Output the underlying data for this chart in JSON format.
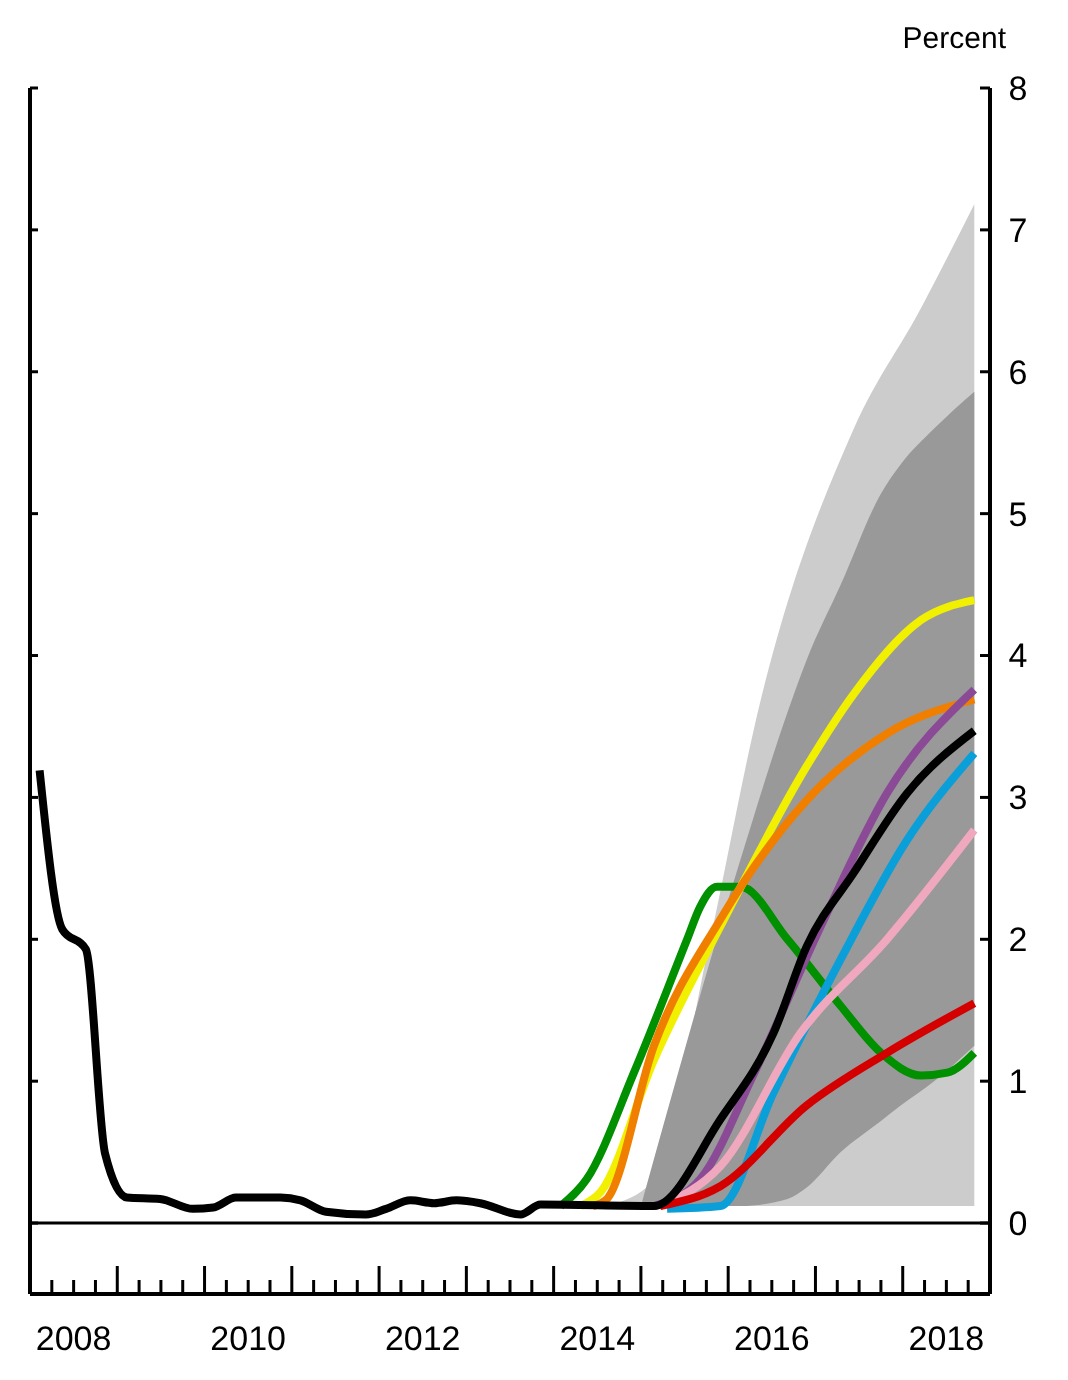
{
  "chart_data": {
    "type": "line",
    "ylabel": "Percent",
    "xlim": [
      2008,
      2019
    ],
    "ylim": [
      -0.5,
      8
    ],
    "yticks": [
      0,
      1,
      2,
      3,
      4,
      5,
      6,
      7,
      8
    ],
    "xticks": [
      {
        "value": 2008,
        "label": null
      },
      {
        "value": 2008.25,
        "label": null
      },
      {
        "value": 2008.5,
        "label": "2008"
      },
      {
        "value": 2008.75,
        "label": null
      },
      {
        "value": 2009,
        "label": null
      },
      {
        "value": 2009.25,
        "label": null
      },
      {
        "value": 2009.5,
        "label": null
      },
      {
        "value": 2009.75,
        "label": null
      },
      {
        "value": 2010,
        "label": null
      },
      {
        "value": 2010.25,
        "label": null
      },
      {
        "value": 2010.5,
        "label": "2010"
      },
      {
        "value": 2010.75,
        "label": null
      },
      {
        "value": 2011,
        "label": null
      },
      {
        "value": 2011.25,
        "label": null
      },
      {
        "value": 2011.5,
        "label": null
      },
      {
        "value": 2011.75,
        "label": null
      },
      {
        "value": 2012,
        "label": null
      },
      {
        "value": 2012.25,
        "label": null
      },
      {
        "value": 2012.5,
        "label": "2012"
      },
      {
        "value": 2012.75,
        "label": null
      },
      {
        "value": 2013,
        "label": null
      },
      {
        "value": 2013.25,
        "label": null
      },
      {
        "value": 2013.5,
        "label": null
      },
      {
        "value": 2013.75,
        "label": null
      },
      {
        "value": 2014,
        "label": null
      },
      {
        "value": 2014.25,
        "label": null
      },
      {
        "value": 2014.5,
        "label": "2014"
      },
      {
        "value": 2014.75,
        "label": null
      },
      {
        "value": 2015,
        "label": null
      },
      {
        "value": 2015.25,
        "label": null
      },
      {
        "value": 2015.5,
        "label": null
      },
      {
        "value": 2015.75,
        "label": null
      },
      {
        "value": 2016,
        "label": null
      },
      {
        "value": 2016.25,
        "label": null
      },
      {
        "value": 2016.5,
        "label": "2016"
      },
      {
        "value": 2016.75,
        "label": null
      },
      {
        "value": 2017,
        "label": null
      },
      {
        "value": 2017.25,
        "label": null
      },
      {
        "value": 2017.5,
        "label": null
      },
      {
        "value": 2017.75,
        "label": null
      },
      {
        "value": 2018,
        "label": null
      },
      {
        "value": 2018.25,
        "label": null
      },
      {
        "value": 2018.5,
        "label": "2018"
      },
      {
        "value": 2018.75,
        "label": null
      },
      {
        "value": 2019,
        "label": null
      }
    ],
    "grid": false,
    "marker": "none",
    "line_style": "solid",
    "ref_lines": [
      {
        "axis": "y",
        "value": 0,
        "color": "#000000"
      }
    ],
    "series": [
      {
        "type": "area",
        "color": "#cccccc",
        "x": [
          2014.6,
          2015.15,
          2015.76,
          2016.37,
          2017.44,
          2018.21,
          2018.82
        ],
        "values": [
          null,
          null,
          null,
          null,
          null,
          null,
          null
        ],
        "lower": [
          0.12,
          0.12,
          0.12,
          0.12,
          0.12,
          0.12,
          0.12
        ],
        "upper": [
          0.12,
          0.3,
          1.9,
          3.68,
          5.6,
          6.45,
          7.18
        ]
      },
      {
        "type": "area",
        "color": "#999999",
        "x": [
          2015.0,
          2016.14,
          2016.68,
          2016.9,
          2017.29,
          2017.75,
          2017.98,
          2018.36,
          2018.82
        ],
        "values": [
          null,
          null,
          null,
          null,
          null,
          null,
          null,
          null,
          null
        ],
        "lower": [
          0.12,
          0.12,
          0.17,
          0.25,
          0.5,
          0.72,
          0.83,
          1.0,
          1.25
        ],
        "upper": [
          0.12,
          2.56,
          3.6,
          3.97,
          4.5,
          5.14,
          5.35,
          5.6,
          5.86
        ]
      },
      {
        "color": "#009000",
        "x": [
          2014.08,
          2014.38,
          2014.92,
          2015.53,
          2015.68,
          2015.87,
          2016.14,
          2016.68,
          2017.29,
          2017.75,
          2018.21,
          2018.51,
          2018.82
        ],
        "values": [
          0.12,
          0.31,
          1.06,
          2.0,
          2.23,
          2.37,
          2.37,
          2.0,
          1.53,
          1.2,
          1.04,
          1.06,
          1.2
        ]
      },
      {
        "color": "#f0f000",
        "x": [
          2014.31,
          2014.54,
          2015.15,
          2015.91,
          2016.9,
          2017.44,
          2018.21,
          2018.82
        ],
        "values": [
          0.12,
          0.22,
          1.15,
          2.09,
          3.22,
          3.73,
          4.25,
          4.39
        ]
      },
      {
        "color": "#f07f00",
        "x": [
          2014.45,
          2014.61,
          2015.15,
          2015.91,
          2016.9,
          2017.82,
          2018.82
        ],
        "values": [
          0.12,
          0.17,
          1.25,
          2.14,
          2.98,
          3.45,
          3.69
        ]
      },
      {
        "color": "#8b4a96",
        "x": [
          2015.15,
          2015.68,
          2016.3,
          2017.06,
          2017.82,
          2018.82
        ],
        "values": [
          0.12,
          0.31,
          1.06,
          2.09,
          3.03,
          3.76
        ]
      },
      {
        "color": "#0a9fd9",
        "x": [
          2015.3,
          2015.91,
          2016.52,
          2017.29,
          2018.05,
          2018.82
        ],
        "values": [
          0.1,
          0.12,
          0.92,
          1.86,
          2.7,
          3.31
        ]
      },
      {
        "color": "#efa8be",
        "x": [
          2015.22,
          2015.91,
          2016.83,
          2017.82,
          2018.82
        ],
        "values": [
          0.12,
          0.4,
          1.34,
          2.0,
          2.77
        ]
      },
      {
        "color": "#d40000",
        "x": [
          2015.22,
          2015.91,
          2016.9,
          2017.82,
          2018.82
        ],
        "values": [
          0.12,
          0.26,
          0.83,
          1.2,
          1.55
        ]
      },
      {
        "color": "#000000",
        "x": [
          2008.11,
          2008.37,
          2008.64,
          2008.86,
          2009.11,
          2009.49,
          2009.87,
          2010.1,
          2010.36,
          2010.87,
          2011.1,
          2011.39,
          2011.85,
          2012.08,
          2012.36,
          2012.63,
          2012.89,
          2013.16,
          2013.62,
          2013.85,
          2015.15,
          2015.91,
          2016.52,
          2016.9,
          2017.44,
          2018.05,
          2018.82
        ],
        "values": [
          3.19,
          2.07,
          1.93,
          0.49,
          0.18,
          0.17,
          0.1,
          0.11,
          0.18,
          0.18,
          0.16,
          0.08,
          0.06,
          0.1,
          0.16,
          0.14,
          0.16,
          0.14,
          0.06,
          0.13,
          0.12,
          0.73,
          1.34,
          1.95,
          2.47,
          3.03,
          3.47
        ]
      }
    ]
  }
}
